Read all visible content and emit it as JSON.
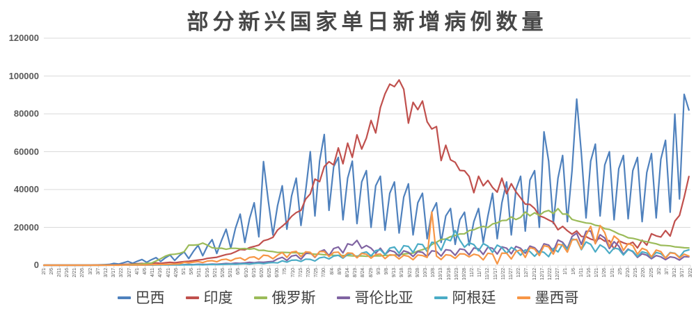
{
  "chart_data": {
    "type": "line",
    "title": "部分新兴国家单日新增病例数量",
    "xlabel": "",
    "ylabel": "",
    "ylim": [
      0,
      120000
    ],
    "y_tick_labels": [
      "0",
      "20000",
      "40000",
      "60000",
      "80000",
      "100000",
      "120000"
    ],
    "grid": true,
    "grid_color": "#D9D9D9",
    "legend_position": "bottom",
    "total_days": 415,
    "sample_step_days": 3,
    "x_tick_interval_days": 5,
    "x_tick_labels": [
      "2/1",
      "2/6",
      "2/11",
      "2/16",
      "2/21",
      "2/26",
      "3/2",
      "3/7",
      "3/12",
      "3/17",
      "3/22",
      "3/27",
      "4/1",
      "4/6",
      "4/11",
      "4/16",
      "4/21",
      "4/26",
      "5/1",
      "5/6",
      "5/11",
      "5/16",
      "5/21",
      "5/26",
      "5/31",
      "6/5",
      "6/10",
      "6/15",
      "6/20",
      "6/25",
      "6/30",
      "7/5",
      "7/10",
      "7/15",
      "7/20",
      "7/25",
      "7/30",
      "8/4",
      "8/9",
      "8/14",
      "8/19",
      "8/24",
      "8/29",
      "9/3",
      "9/8",
      "9/13",
      "9/18",
      "9/23",
      "9/28",
      "10/3",
      "10/8",
      "10/13",
      "10/18",
      "10/23",
      "10/28",
      "11/2",
      "11/7",
      "11/12",
      "11/17",
      "11/22",
      "11/27",
      "12/2",
      "12/7",
      "12/12",
      "12/17",
      "12/22",
      "12/27",
      "1/1",
      "1/6",
      "1/11",
      "1/16",
      "1/21",
      "1/26",
      "1/31",
      "2/5",
      "2/10",
      "2/15",
      "2/20",
      "2/25",
      "3/2",
      "3/7",
      "3/12",
      "3/17",
      "3/22"
    ],
    "series": [
      {
        "name": "巴西",
        "color": "#4F81BD",
        "values": [
          0,
          0,
          0,
          0,
          0,
          0,
          0,
          0,
          0,
          0,
          0,
          100,
          200,
          300,
          400,
          900,
          600,
          1300,
          2000,
          1000,
          2100,
          3000,
          1500,
          2900,
          4000,
          2000,
          3900,
          5400,
          2500,
          5100,
          7000,
          3500,
          7300,
          10500,
          5000,
          10100,
          13500,
          6200,
          13000,
          19000,
          9000,
          19500,
          27000,
          12000,
          24500,
          33000,
          15000,
          54800,
          34200,
          16000,
          31500,
          42000,
          19000,
          36500,
          46000,
          21000,
          39000,
          60000,
          26000,
          55000,
          69100,
          29000,
          52000,
          57000,
          24000,
          46000,
          55000,
          22000,
          44000,
          50000,
          20000,
          42000,
          47000,
          18500,
          38000,
          44000,
          17000,
          36000,
          43000,
          16000,
          33000,
          38000,
          14000,
          28000,
          33000,
          12000,
          26000,
          30000,
          11000,
          24000,
          28000,
          10500,
          23000,
          30000,
          12000,
          26000,
          38000,
          14000,
          33000,
          44000,
          16000,
          40000,
          47000,
          18000,
          45000,
          50000,
          20000,
          70500,
          55000,
          22000,
          46000,
          58000,
          23000,
          50000,
          87800,
          59000,
          25000,
          55000,
          64000,
          26000,
          53000,
          60000,
          24000,
          51000,
          58000,
          24500,
          50000,
          57000,
          23000,
          49000,
          59000,
          25000,
          56000,
          66000,
          28000,
          79900,
          35000,
          90300,
          82000
        ]
      },
      {
        "name": "印度",
        "color": "#C0504D",
        "values": [
          0,
          0,
          0,
          0,
          0,
          0,
          0,
          0,
          0,
          0,
          0,
          100,
          100,
          100,
          200,
          200,
          300,
          400,
          500,
          600,
          800,
          900,
          800,
          1000,
          1200,
          1000,
          1300,
          1500,
          1300,
          1600,
          1900,
          2100,
          2400,
          2700,
          3000,
          3600,
          3900,
          4200,
          4900,
          5600,
          6000,
          7100,
          8300,
          8100,
          9300,
          9900,
          10600,
          12900,
          13600,
          14700,
          18600,
          20600,
          22800,
          25800,
          27800,
          29000,
          34900,
          37700,
          45500,
          44200,
          52100,
          54700,
          53000,
          62000,
          53600,
          64500,
          57000,
          68900,
          61400,
          67200,
          76500,
          69900,
          83300,
          90600,
          95700,
          94400,
          97900,
          93000,
          75100,
          86100,
          82200,
          86800,
          75800,
          72000,
          73300,
          55300,
          63400,
          55700,
          54400,
          50100,
          49900,
          46900,
          38300,
          47000,
          42000,
          44800,
          41100,
          38600,
          46000,
          37800,
          43100,
          38800,
          35600,
          32300,
          32100,
          30000,
          26100,
          25200,
          23900,
          22700,
          18700,
          20500,
          18200,
          16400,
          18100,
          15200,
          15100,
          13800,
          13100,
          14300,
          12700,
          13000,
          8600,
          12900,
          11800,
          11000,
          12100,
          9100,
          13200,
          10600,
          16600,
          15500,
          14900,
          18300,
          15400,
          23300,
          26300,
          35900,
          46900
        ]
      },
      {
        "name": "俄罗斯",
        "color": "#9BBB59",
        "values": [
          0,
          0,
          0,
          0,
          0,
          0,
          0,
          0,
          0,
          0,
          0,
          0,
          0,
          100,
          100,
          100,
          200,
          200,
          300,
          400,
          500,
          700,
          1000,
          1100,
          2200,
          3400,
          4800,
          5600,
          5800,
          6200,
          7100,
          10600,
          10600,
          10800,
          11700,
          10600,
          9200,
          8900,
          9000,
          8400,
          8900,
          8900,
          8700,
          8800,
          8400,
          8800,
          7800,
          7900,
          7400,
          7200,
          6700,
          6800,
          6700,
          6600,
          6600,
          6200,
          6400,
          6100,
          5800,
          5800,
          5500,
          5500,
          5200,
          5200,
          5100,
          5100,
          4900,
          4800,
          4900,
          4700,
          4800,
          4900,
          4900,
          5200,
          5200,
          5400,
          5500,
          5900,
          6200,
          6400,
          7500,
          8200,
          9100,
          10900,
          12100,
          13600,
          13800,
          15100,
          15700,
          16500,
          16600,
          18300,
          18700,
          19800,
          20500,
          19900,
          21800,
          22400,
          23600,
          23700,
          25500,
          24100,
          25300,
          28100,
          26100,
          27700,
          26300,
          28200,
          28900,
          27300,
          29900,
          27000,
          27000,
          24200,
          23500,
          22900,
          22300,
          22100,
          21100,
          20700,
          19300,
          18900,
          17800,
          16500,
          15700,
          14500,
          14200,
          13600,
          12800,
          12400,
          11800,
          11300,
          10500,
          10400,
          10200,
          9700,
          9500,
          9200,
          9100
        ]
      },
      {
        "name": "哥伦比亚",
        "color": "#8064A2",
        "values": [
          0,
          0,
          0,
          0,
          0,
          0,
          0,
          0,
          0,
          0,
          0,
          0,
          0,
          0,
          100,
          100,
          100,
          200,
          200,
          100,
          100,
          100,
          200,
          100,
          200,
          300,
          200,
          300,
          300,
          200,
          300,
          400,
          300,
          500,
          400,
          400,
          600,
          500,
          700,
          900,
          800,
          1100,
          1000,
          1200,
          1500,
          1300,
          1600,
          1500,
          1800,
          2000,
          3300,
          4200,
          2500,
          4800,
          5300,
          3100,
          6100,
          6600,
          4100,
          7200,
          8100,
          5000,
          8800,
          9600,
          6500,
          11300,
          10600,
          13100,
          8900,
          10400,
          9000,
          6300,
          9000,
          5700,
          7800,
          7100,
          4700,
          7600,
          6800,
          4600,
          7200,
          6800,
          4500,
          7600,
          7300,
          4800,
          8200,
          7800,
          5200,
          8600,
          8200,
          5500,
          9100,
          8600,
          5700,
          9500,
          8900,
          5900,
          9700,
          9000,
          6000,
          9900,
          8900,
          6300,
          10100,
          9200,
          6500,
          11300,
          10600,
          7400,
          13300,
          12100,
          8800,
          15200,
          16900,
          11000,
          17900,
          18100,
          11500,
          16100,
          14400,
          8800,
          12400,
          10100,
          5800,
          8500,
          7100,
          4100,
          6000,
          5300,
          3400,
          5100,
          4400,
          2900,
          4400,
          4000,
          2700,
          4500,
          4400
        ]
      },
      {
        "name": "阿根廷",
        "color": "#4BACC6",
        "values": [
          0,
          0,
          0,
          0,
          0,
          0,
          0,
          0,
          0,
          0,
          0,
          0,
          0,
          0,
          0,
          100,
          0,
          100,
          100,
          100,
          100,
          100,
          100,
          100,
          100,
          100,
          100,
          100,
          200,
          100,
          200,
          200,
          200,
          300,
          200,
          300,
          400,
          300,
          400,
          500,
          600,
          500,
          700,
          800,
          600,
          900,
          1100,
          800,
          1200,
          1400,
          1200,
          2300,
          1600,
          2600,
          2700,
          2000,
          3200,
          3100,
          2200,
          3900,
          4300,
          3300,
          4800,
          5200,
          3700,
          5700,
          6100,
          4200,
          6400,
          7000,
          4900,
          7700,
          8200,
          5600,
          9000,
          9600,
          6300,
          10300,
          9900,
          6700,
          11200,
          10900,
          7200,
          12100,
          11800,
          7800,
          13800,
          12900,
          18300,
          13200,
          9500,
          11800,
          10900,
          7600,
          11400,
          10100,
          6800,
          10600,
          9300,
          6200,
          9400,
          8000,
          5300,
          8100,
          7200,
          4700,
          7400,
          6800,
          4500,
          8900,
          7000,
          11200,
          8300,
          13800,
          13400,
          8200,
          12300,
          11000,
          7000,
          10700,
          9200,
          6200,
          9100,
          8500,
          5400,
          8200,
          7400,
          4600,
          7100,
          6400,
          4100,
          6700,
          6100,
          3900,
          6700,
          6300,
          4200,
          7400,
          8100
        ]
      },
      {
        "name": "墨西哥",
        "color": "#F79646",
        "values": [
          0,
          0,
          0,
          0,
          0,
          0,
          0,
          0,
          0,
          0,
          0,
          0,
          0,
          0,
          0,
          0,
          0,
          100,
          100,
          100,
          100,
          100,
          200,
          300,
          300,
          400,
          400,
          500,
          600,
          700,
          1500,
          1300,
          1600,
          1900,
          1400,
          2200,
          2400,
          1800,
          2900,
          3200,
          2300,
          3500,
          3900,
          2600,
          4100,
          4400,
          3100,
          5300,
          5000,
          3400,
          5300,
          6700,
          4100,
          6900,
          7300,
          4500,
          7100,
          6800,
          4300,
          7200,
          7200,
          4600,
          6700,
          6900,
          4100,
          6500,
          6300,
          3900,
          6200,
          5800,
          3700,
          5600,
          5900,
          3500,
          5500,
          5300,
          3300,
          5200,
          4700,
          2900,
          5400,
          5100,
          4100,
          28100,
          4800,
          3000,
          5500,
          5200,
          3600,
          6000,
          5900,
          4400,
          5800,
          5200,
          2800,
          6300,
          5900,
          700,
          6400,
          6300,
          3300,
          7200,
          8100,
          4100,
          9200,
          8600,
          5100,
          10300,
          9700,
          5800,
          11100,
          10600,
          6900,
          13300,
          13700,
          8500,
          15900,
          20500,
          11300,
          21000,
          17200,
          9800,
          15400,
          13400,
          7800,
          11500,
          10400,
          5800,
          8900,
          7900,
          4400,
          8000,
          7200,
          3700,
          6500,
          6200,
          3800,
          5800,
          4800
        ]
      }
    ]
  }
}
